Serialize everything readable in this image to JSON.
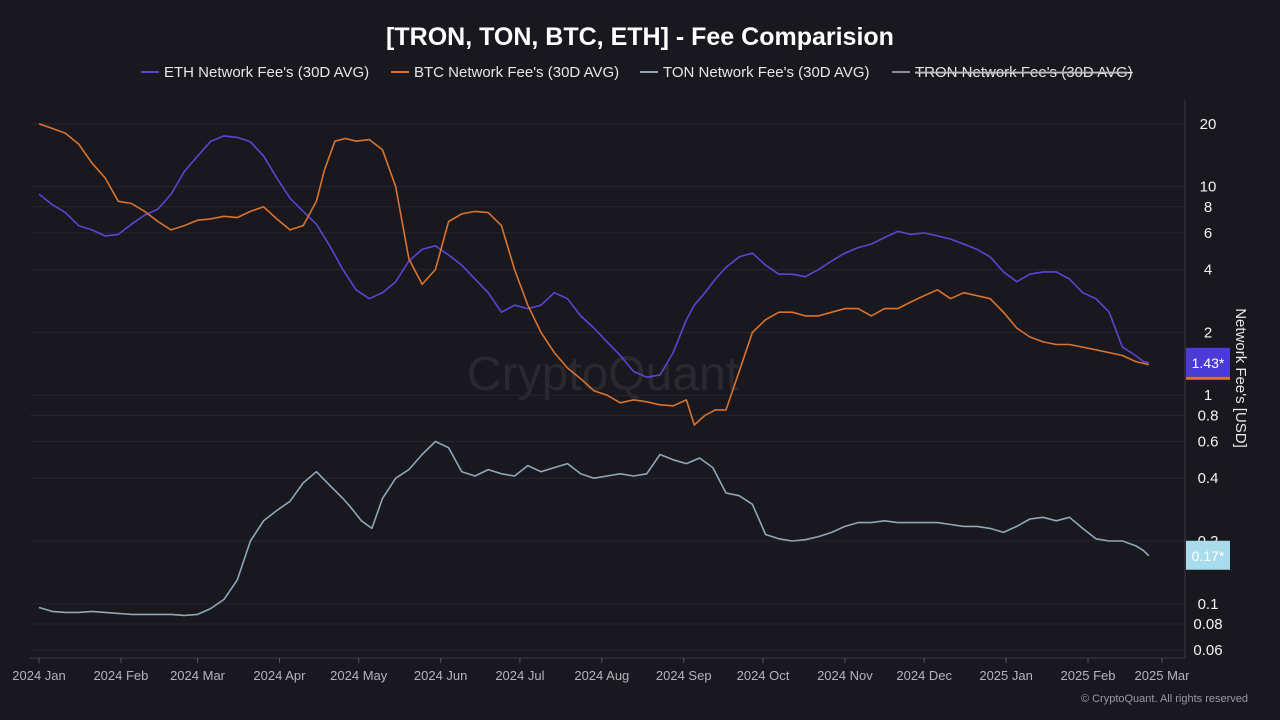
{
  "chart_data": {
    "type": "line",
    "title": "[TRON, TON, BTC, ETH] - Fee Comparision",
    "ylabel": "Network Fee's [USD]",
    "yscale": "log",
    "ylim": [
      0.055,
      26
    ],
    "yticks": [
      20,
      10,
      8,
      6,
      4,
      2,
      1,
      0.8,
      0.6,
      0.4,
      0.2,
      0.1,
      0.08,
      0.06
    ],
    "ytick_labels": [
      "20",
      "10",
      "8",
      "6",
      "4",
      "2",
      "1",
      "0.8",
      "0.6",
      "0.4",
      "0.2",
      "0.1",
      "0.08",
      "0.06"
    ],
    "x_start": "2024-01-01",
    "x_end": "2025-03-01",
    "xtick_labels": [
      "2024 Jan",
      "2024 Feb",
      "2024 Mar",
      "2024 Apr",
      "2024 May",
      "2024 Jun",
      "2024 Jul",
      "2024 Aug",
      "2024 Sep",
      "2024 Oct",
      "2024 Nov",
      "2024 Dec",
      "2025 Jan",
      "2025 Feb",
      "2025 Mar"
    ],
    "xtick_days": [
      0,
      31,
      60,
      91,
      121,
      152,
      182,
      213,
      244,
      274,
      305,
      335,
      366,
      397,
      425
    ],
    "grid": true,
    "legend_position": "top",
    "series": [
      {
        "name": "ETH Network Fee's (30D AVG)",
        "color": "#5b45d6",
        "visible": true,
        "x": [
          0,
          5,
          10,
          15,
          20,
          25,
          30,
          35,
          40,
          45,
          50,
          55,
          60,
          65,
          70,
          75,
          80,
          85,
          90,
          95,
          100,
          105,
          110,
          115,
          120,
          125,
          130,
          135,
          140,
          145,
          150,
          155,
          160,
          165,
          170,
          175,
          180,
          185,
          190,
          195,
          200,
          205,
          210,
          215,
          220,
          225,
          230,
          235,
          240,
          245,
          248,
          252,
          256,
          260,
          265,
          270,
          275,
          280,
          285,
          290,
          295,
          300,
          305,
          310,
          315,
          320,
          325,
          330,
          335,
          340,
          345,
          350,
          355,
          360,
          365,
          370,
          375,
          380,
          385,
          390,
          395,
          400,
          405,
          410,
          415,
          418,
          420
        ],
        "values": [
          9.2,
          8.2,
          7.5,
          6.5,
          6.2,
          5.8,
          5.9,
          6.6,
          7.3,
          7.8,
          9.2,
          11.8,
          14,
          16.5,
          17.5,
          17.2,
          16.4,
          14,
          11,
          8.8,
          7.6,
          6.6,
          5.2,
          4.0,
          3.2,
          2.9,
          3.1,
          3.5,
          4.4,
          5.0,
          5.2,
          4.7,
          4.2,
          3.6,
          3.1,
          2.5,
          2.7,
          2.6,
          2.7,
          3.1,
          2.9,
          2.4,
          2.1,
          1.8,
          1.55,
          1.3,
          1.22,
          1.25,
          1.6,
          2.3,
          2.7,
          3.1,
          3.6,
          4.1,
          4.6,
          4.8,
          4.2,
          3.8,
          3.8,
          3.7,
          4.0,
          4.4,
          4.8,
          5.1,
          5.3,
          5.7,
          6.1,
          5.9,
          6.0,
          5.8,
          5.6,
          5.3,
          5.0,
          4.6,
          3.9,
          3.5,
          3.8,
          3.9,
          3.9,
          3.6,
          3.1,
          2.9,
          2.5,
          1.7,
          1.55,
          1.45,
          1.43
        ]
      },
      {
        "name": "BTC Network Fee's (30D AVG)",
        "color": "#d9732e",
        "visible": true,
        "x": [
          0,
          5,
          10,
          15,
          20,
          25,
          30,
          35,
          40,
          45,
          50,
          55,
          60,
          65,
          70,
          75,
          80,
          85,
          90,
          95,
          100,
          105,
          108,
          112,
          116,
          120,
          125,
          130,
          135,
          140,
          145,
          150,
          155,
          160,
          165,
          170,
          175,
          180,
          185,
          190,
          195,
          200,
          205,
          210,
          215,
          220,
          225,
          230,
          235,
          240,
          245,
          248,
          252,
          256,
          260,
          265,
          270,
          275,
          280,
          285,
          290,
          295,
          300,
          305,
          310,
          315,
          320,
          325,
          330,
          335,
          340,
          345,
          350,
          355,
          360,
          365,
          370,
          375,
          380,
          385,
          390,
          395,
          400,
          405,
          410,
          415,
          418,
          420
        ],
        "values": [
          20,
          19,
          18,
          16,
          13,
          11,
          8.5,
          8.3,
          7.6,
          6.8,
          6.2,
          6.5,
          6.9,
          7.0,
          7.2,
          7.1,
          7.6,
          8.0,
          7.0,
          6.2,
          6.5,
          8.5,
          12,
          16.5,
          17,
          16.5,
          16.8,
          15,
          10,
          4.5,
          3.4,
          4.0,
          6.8,
          7.4,
          7.6,
          7.5,
          6.5,
          4.0,
          2.7,
          2.0,
          1.6,
          1.35,
          1.2,
          1.05,
          1.0,
          0.92,
          0.95,
          0.93,
          0.9,
          0.89,
          0.95,
          0.72,
          0.8,
          0.85,
          0.85,
          1.3,
          2.0,
          2.3,
          2.5,
          2.5,
          2.4,
          2.4,
          2.5,
          2.6,
          2.6,
          2.4,
          2.6,
          2.6,
          2.8,
          3.0,
          3.2,
          2.9,
          3.1,
          3.0,
          2.9,
          2.5,
          2.1,
          1.9,
          1.8,
          1.75,
          1.75,
          1.7,
          1.65,
          1.6,
          1.55,
          1.45,
          1.42,
          1.4
        ]
      },
      {
        "name": "TON Network Fee's (30D AVG)",
        "color": "#8ea8b8",
        "visible": true,
        "x": [
          0,
          5,
          10,
          15,
          20,
          25,
          30,
          35,
          40,
          45,
          50,
          55,
          60,
          65,
          70,
          75,
          80,
          85,
          90,
          95,
          100,
          105,
          110,
          115,
          118,
          122,
          126,
          130,
          135,
          140,
          145,
          150,
          155,
          160,
          165,
          170,
          175,
          180,
          185,
          190,
          195,
          200,
          205,
          210,
          215,
          220,
          225,
          230,
          235,
          240,
          245,
          250,
          255,
          260,
          265,
          270,
          275,
          280,
          285,
          290,
          295,
          300,
          305,
          310,
          315,
          320,
          325,
          330,
          335,
          340,
          345,
          350,
          355,
          360,
          365,
          370,
          375,
          380,
          385,
          390,
          395,
          400,
          405,
          410,
          415,
          418,
          420
        ],
        "values": [
          0.096,
          0.092,
          0.091,
          0.091,
          0.092,
          0.091,
          0.09,
          0.089,
          0.089,
          0.089,
          0.089,
          0.088,
          0.089,
          0.095,
          0.105,
          0.13,
          0.2,
          0.25,
          0.28,
          0.31,
          0.38,
          0.43,
          0.37,
          0.32,
          0.29,
          0.25,
          0.23,
          0.32,
          0.4,
          0.44,
          0.52,
          0.6,
          0.56,
          0.43,
          0.41,
          0.44,
          0.42,
          0.41,
          0.46,
          0.43,
          0.45,
          0.47,
          0.42,
          0.4,
          0.41,
          0.42,
          0.41,
          0.42,
          0.52,
          0.49,
          0.47,
          0.5,
          0.45,
          0.34,
          0.33,
          0.3,
          0.215,
          0.205,
          0.2,
          0.203,
          0.21,
          0.22,
          0.235,
          0.245,
          0.245,
          0.25,
          0.245,
          0.245,
          0.245,
          0.245,
          0.24,
          0.235,
          0.235,
          0.23,
          0.22,
          0.235,
          0.255,
          0.26,
          0.25,
          0.26,
          0.23,
          0.205,
          0.2,
          0.2,
          0.19,
          0.18,
          0.17
        ]
      },
      {
        "name": "TRON Network Fee's (30D AVG)",
        "color": "#8c8c94",
        "visible": false
      }
    ],
    "end_labels": [
      {
        "series": "ETH Network Fee's (30D AVG)",
        "text": "1.43*",
        "value": 1.43,
        "bg": "#4a3ad8",
        "fg": "#ffffff"
      },
      {
        "series": "TON Network Fee's (30D AVG)",
        "text": "0.17*",
        "value": 0.17,
        "bg": "#a8dbec",
        "fg": "#ffffff"
      }
    ]
  },
  "watermark": "CryptoQuant",
  "copyright": "© CryptoQuant. All rights reserved"
}
